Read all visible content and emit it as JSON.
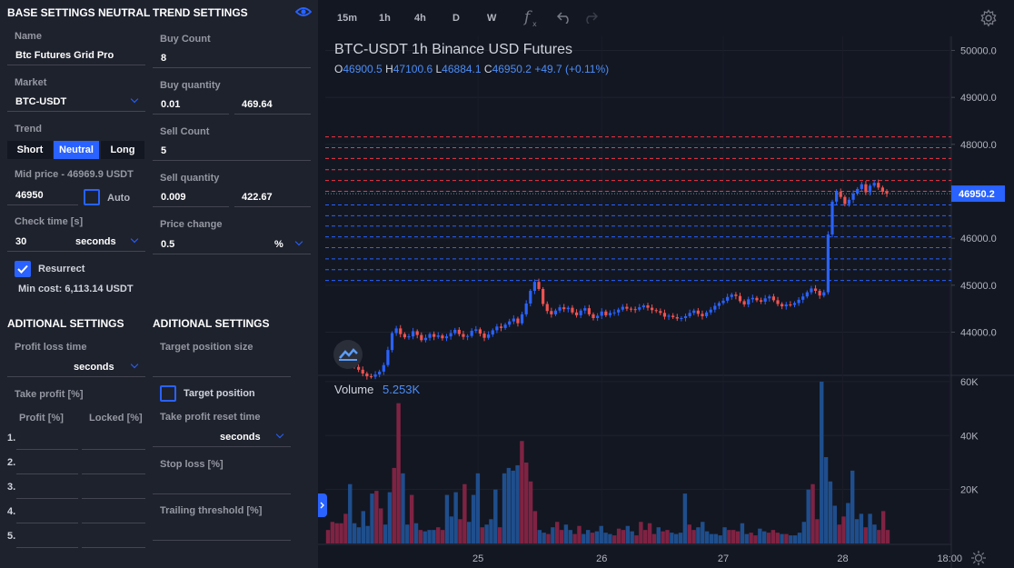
{
  "base": {
    "title": "BASE SETTINGS NEUTRAL",
    "name_label": "Name",
    "name_value": "Btc Futures Grid Pro",
    "market_label": "Market",
    "market_value": "BTC-USDT",
    "trend_label": "Trend",
    "trend_options": [
      "Short",
      "Neutral",
      "Long"
    ],
    "trend_selected": "Neutral",
    "mid_price_label": "Mid price - 46969.9 USDT",
    "mid_price_value": "46950",
    "auto_label": "Auto",
    "check_time_label": "Check time [s]",
    "check_time_value": "30",
    "check_time_unit": "seconds",
    "resurrect_label": "Resurrect",
    "resurrect_checked": true,
    "min_cost": "Min cost: 6,113.14 USDT"
  },
  "trend": {
    "title": "TREND SETTINGS",
    "buy_count_label": "Buy Count",
    "buy_count_value": "8",
    "buy_quantity_label": "Buy quantity",
    "buy_quantity_value": "0.01",
    "buy_quantity_usd": "469.64",
    "sell_count_label": "Sell Count",
    "sell_count_value": "5",
    "sell_quantity_label": "Sell quantity",
    "sell_quantity_value": "0.009",
    "sell_quantity_usd": "422.67",
    "price_change_label": "Price change",
    "price_change_value": "0.5",
    "price_change_unit": "%"
  },
  "additional_left": {
    "title": "ADITIONAL SETTINGS",
    "profit_loss_time_label": "Profit loss time",
    "profit_loss_time_unit": "seconds",
    "take_profit_label": "Take profit [%]",
    "col_profit": "Profit [%]",
    "col_locked": "Locked [%]",
    "rows": [
      "1.",
      "2.",
      "3.",
      "4.",
      "5."
    ]
  },
  "additional_right": {
    "title": "ADITIONAL SETTINGS",
    "target_position_size_label": "Target position size",
    "target_position_label": "Target position",
    "take_profit_reset_time_label": "Take profit reset time",
    "take_profit_reset_time_unit": "seconds",
    "stop_loss_label": "Stop loss [%]",
    "trailing_threshold_label": "Trailing threshold [%]"
  },
  "toolbar": {
    "timeframes": [
      "15m",
      "1h",
      "4h",
      "D",
      "W"
    ],
    "icons": [
      "eye-icon",
      "function-icon",
      "undo-icon",
      "redo-icon",
      "gear-icon"
    ]
  },
  "chart_data": [
    {
      "type": "candlestick",
      "title": "BTC-USDT   1h   Binance USD Futures",
      "ohlc": {
        "O": "46900.5",
        "H": "47100.6",
        "L": "46884.1",
        "C": "46950.2",
        "change": "+49.7 (+0.11%)"
      },
      "last_price": "46950.2",
      "y_ticks": [
        "50000.0",
        "49000.0",
        "48000.0",
        "47000.0",
        "46000.0",
        "45000.0",
        "44000.0"
      ],
      "ylim": [
        43100,
        50300
      ],
      "grid_levels_sell": [
        47000,
        47230,
        47460,
        47700,
        47930,
        48160
      ],
      "grid_levels_buy": [
        46710,
        46480,
        46260,
        46030,
        45800,
        45560,
        45330,
        45100
      ],
      "colors": {
        "up": "#2962ff",
        "down": "#ef5350",
        "sell_line": "#f23645",
        "buy_line": "#2962ff"
      },
      "closes": [
        43260,
        43200,
        43120,
        43060,
        43050,
        43100,
        43160,
        43300,
        43620,
        43980,
        44080,
        43960,
        43890,
        43910,
        44020,
        43940,
        43830,
        43880,
        43960,
        43900,
        43930,
        43870,
        43910,
        43980,
        44050,
        43960,
        43900,
        43920,
        44030,
        44060,
        43970,
        43880,
        43950,
        44040,
        44120,
        44090,
        44160,
        44230,
        44290,
        44190,
        44380,
        44610,
        44880,
        45070,
        44920,
        44600,
        44450,
        44380,
        44460,
        44530,
        44490,
        44520,
        44420,
        44360,
        44460,
        44510,
        44380,
        44300,
        44350,
        44440,
        44360,
        44410,
        44420,
        44480,
        44540,
        44500,
        44490,
        44480,
        44530,
        44570,
        44520,
        44470,
        44450,
        44410,
        44330,
        44350,
        44320,
        44290,
        44300,
        44340,
        44410,
        44460,
        44390,
        44340,
        44420,
        44480,
        44560,
        44620,
        44670,
        44750,
        44800,
        44770,
        44660,
        44590,
        44700,
        44730,
        44680,
        44650,
        44720,
        44760,
        44680,
        44600,
        44550,
        44590,
        44580,
        44620,
        44690,
        44760,
        44850,
        44930,
        44880,
        44780,
        44850,
        46080,
        46780,
        46990,
        46880,
        46730,
        46820,
        46950,
        47050,
        47150,
        46980,
        47120,
        47180,
        47080,
        46990,
        46950
      ],
      "x_ticks": [
        "25",
        "26",
        "27",
        "28",
        "18:00"
      ],
      "logo_icon": "tradingview-logo-icon"
    },
    {
      "type": "bar",
      "title": "Volume",
      "value_label": "5.253K",
      "y_ticks": [
        "60K",
        "40K",
        "20K"
      ],
      "ylim": [
        0,
        62000
      ],
      "values": [
        5000,
        8000,
        7500,
        7500,
        11000,
        22000,
        7500,
        6000,
        12000,
        6500,
        18500,
        19500,
        13000,
        7000,
        19000,
        28000,
        52000,
        26000,
        7000,
        18000,
        7500,
        5000,
        4500,
        5000,
        5000,
        6000,
        5000,
        18000,
        10000,
        19000,
        9000,
        22000,
        8000,
        18000,
        26000,
        6000,
        7000,
        9000,
        20000,
        6000,
        26000,
        28000,
        27000,
        29000,
        38000,
        30000,
        23000,
        12000,
        5000,
        4000,
        3500,
        6000,
        8000,
        5000,
        7000,
        5000,
        3500,
        6500,
        3500,
        5000,
        4000,
        4500,
        6500,
        4000,
        3500,
        3000,
        5500,
        5000,
        6500,
        4500,
        3000,
        8000,
        5000,
        7500,
        3500,
        6000,
        4500,
        5000,
        4000,
        3500,
        4000,
        18500,
        7000,
        5000,
        6000,
        8000,
        4500,
        3500,
        3500,
        3000,
        6000,
        5000,
        5000,
        4500,
        7500,
        3500,
        4000,
        3000,
        5500,
        4500,
        4000,
        5000,
        4000,
        3500,
        3500,
        3000,
        3000,
        4000,
        8000,
        20000,
        22000,
        9000,
        60000,
        32000,
        23000,
        14000,
        7000,
        10000,
        15000,
        27000,
        9000,
        11000,
        6000,
        11000,
        7000,
        5000,
        12000,
        5000
      ],
      "colors": {
        "up": "#1f4e8c",
        "down": "#7f2343"
      }
    }
  ]
}
